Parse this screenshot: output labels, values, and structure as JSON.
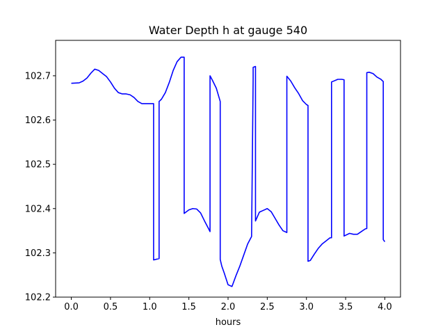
{
  "chart_data": {
    "type": "line",
    "title": "Water Depth h at gauge 540",
    "xlabel": "hours",
    "ylabel": "",
    "xlim": [
      -0.2,
      4.2
    ],
    "ylim": [
      102.2,
      102.78
    ],
    "xticks": [
      0.0,
      0.5,
      1.0,
      1.5,
      2.0,
      2.5,
      3.0,
      3.5,
      4.0
    ],
    "xtick_labels": [
      "0.0",
      "0.5",
      "1.0",
      "1.5",
      "2.0",
      "2.5",
      "3.0",
      "3.5",
      "4.0"
    ],
    "yticks": [
      102.2,
      102.3,
      102.4,
      102.5,
      102.6,
      102.7
    ],
    "ytick_labels": [
      "102.2",
      "102.3",
      "102.4",
      "102.5",
      "102.6",
      "102.7"
    ],
    "grid": false,
    "legend": "none",
    "series": [
      {
        "color": "#0000ff",
        "x": [
          0.0,
          0.1,
          0.15,
          0.2,
          0.25,
          0.3,
          0.35,
          0.4,
          0.45,
          0.5,
          0.55,
          0.6,
          0.65,
          0.7,
          0.75,
          0.8,
          0.85,
          0.9,
          0.95,
          1.0,
          1.05,
          1.05,
          1.12,
          1.12,
          1.15,
          1.2,
          1.25,
          1.3,
          1.35,
          1.4,
          1.44,
          1.44,
          1.5,
          1.55,
          1.6,
          1.65,
          1.7,
          1.75,
          1.77,
          1.77,
          1.8,
          1.85,
          1.9,
          1.9,
          1.92,
          1.95,
          2.0,
          2.05,
          2.1,
          2.15,
          2.2,
          2.25,
          2.3,
          2.32,
          2.32,
          2.35,
          2.35,
          2.4,
          2.45,
          2.5,
          2.55,
          2.6,
          2.65,
          2.7,
          2.75,
          2.75,
          2.8,
          2.85,
          2.9,
          2.95,
          3.0,
          3.02,
          3.02,
          3.05,
          3.1,
          3.15,
          3.2,
          3.25,
          3.3,
          3.32,
          3.32,
          3.4,
          3.45,
          3.48,
          3.48,
          3.55,
          3.6,
          3.65,
          3.7,
          3.75,
          3.77,
          3.77,
          3.8,
          3.85,
          3.9,
          3.95,
          3.98,
          3.98,
          4.0
        ],
        "y": [
          102.683,
          102.684,
          102.688,
          102.695,
          102.706,
          102.715,
          102.712,
          102.705,
          102.698,
          102.686,
          102.672,
          102.662,
          102.659,
          102.659,
          102.657,
          102.651,
          102.642,
          102.637,
          102.637,
          102.637,
          102.637,
          102.284,
          102.287,
          102.642,
          102.647,
          102.662,
          102.685,
          102.712,
          102.732,
          102.742,
          102.742,
          102.389,
          102.397,
          102.4,
          102.399,
          102.39,
          102.372,
          102.355,
          102.348,
          102.7,
          102.69,
          102.672,
          102.642,
          102.285,
          102.27,
          102.255,
          102.228,
          102.224,
          102.248,
          102.27,
          102.295,
          102.32,
          102.337,
          102.693,
          102.719,
          102.721,
          102.372,
          102.392,
          102.396,
          102.4,
          102.393,
          102.378,
          102.363,
          102.35,
          102.346,
          102.699,
          102.688,
          102.673,
          102.66,
          102.644,
          102.635,
          102.633,
          102.281,
          102.283,
          102.297,
          102.31,
          102.32,
          102.327,
          102.334,
          102.334,
          102.686,
          102.692,
          102.692,
          102.691,
          102.338,
          102.344,
          102.342,
          102.342,
          102.348,
          102.354,
          102.355,
          102.707,
          102.708,
          102.705,
          102.697,
          102.692,
          102.687,
          102.33,
          102.325
        ]
      }
    ]
  }
}
